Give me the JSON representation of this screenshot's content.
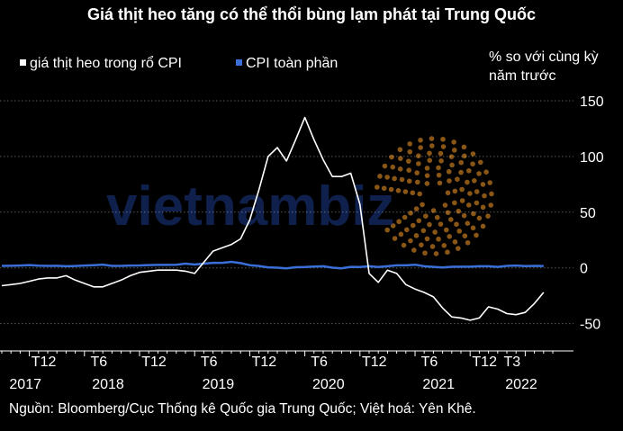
{
  "title": "Giá thịt heo tăng có thể thổi bùng lạm phát tại Trung Quốc",
  "unit_label": [
    "% so với cùng kỳ",
    "năm trước"
  ],
  "source": "Nguồn: Bloomberg/Cục Thống kê Quốc gia Trung Quốc; Việt hoá: Yên Khê.",
  "watermark": "vietnambiz",
  "colors": {
    "background": "#000000",
    "pork_line": "#ffffff",
    "cpi_line": "#3a6fd8",
    "grid": "#ffffff",
    "watermark_text": "#1c3a8a",
    "watermark_dots": "#c47a1e"
  },
  "chart_data": {
    "type": "line",
    "ylim": [
      -60,
      150
    ],
    "yticks": [
      150,
      100,
      50,
      0,
      -50
    ],
    "xlim": [
      0,
      63
    ],
    "grid": "horizontal",
    "legend_position": "top-left",
    "x_tick_labels": [
      {
        "label": "T12",
        "x": 3
      },
      {
        "label": "T6",
        "x": 9
      },
      {
        "label": "T12",
        "x": 15
      },
      {
        "label": "T6",
        "x": 21
      },
      {
        "label": "T12",
        "x": 27
      },
      {
        "label": "T6",
        "x": 33
      },
      {
        "label": "T12",
        "x": 39
      },
      {
        "label": "T6",
        "x": 45
      },
      {
        "label": "T12",
        "x": 51
      },
      {
        "label": "T3",
        "x": 54
      }
    ],
    "year_labels": [
      {
        "label": "2017",
        "x": 1
      },
      {
        "label": "2018",
        "x": 10
      },
      {
        "label": "2019",
        "x": 22
      },
      {
        "label": "2020",
        "x": 34
      },
      {
        "label": "2021",
        "x": 46
      },
      {
        "label": "2022",
        "x": 55
      }
    ],
    "series": [
      {
        "name": "giá thịt heo trong rổ CPI",
        "color": "#ffffff",
        "values": [
          -16,
          -15,
          -14,
          -12,
          -10,
          -9,
          -9,
          -7,
          -11,
          -14,
          -17,
          -17,
          -14,
          -11,
          -7,
          -4,
          -3,
          -2,
          -2,
          -2,
          -3,
          -5,
          5,
          15,
          18,
          21,
          26,
          43,
          70,
          100,
          108,
          96,
          115,
          135,
          115,
          97,
          82,
          82,
          85,
          57,
          -5,
          -13,
          -2,
          -5,
          -15,
          -19,
          -22,
          -26,
          -36,
          -44,
          -45,
          -47,
          -45,
          -35,
          -37,
          -41,
          -42,
          -40,
          -32,
          -22
        ]
      },
      {
        "name": "CPI toàn phần",
        "color": "#3a6fd8",
        "values": [
          1.8,
          1.9,
          2.1,
          2.5,
          2.0,
          1.8,
          1.9,
          1.5,
          1.7,
          2.1,
          2.4,
          2.9,
          1.8,
          1.8,
          2.1,
          2.2,
          2.5,
          2.7,
          2.7,
          2.8,
          3.8,
          3.0,
          3.8,
          4.5,
          4.5,
          5.4,
          4.3,
          2.4,
          1.7,
          0.5,
          0.2,
          -0.4,
          0.6,
          0.7,
          1.2,
          1.5,
          0.2,
          -0.4,
          0.9,
          0.8,
          1.5,
          0.7,
          1.5,
          2.3,
          2.3,
          2.8,
          1.5,
          0.9,
          0.4,
          1.0,
          1.1,
          1.1,
          1.5,
          1.5,
          0.9,
          1.8,
          2.1,
          1.6,
          1.8,
          1.7
        ]
      }
    ]
  }
}
